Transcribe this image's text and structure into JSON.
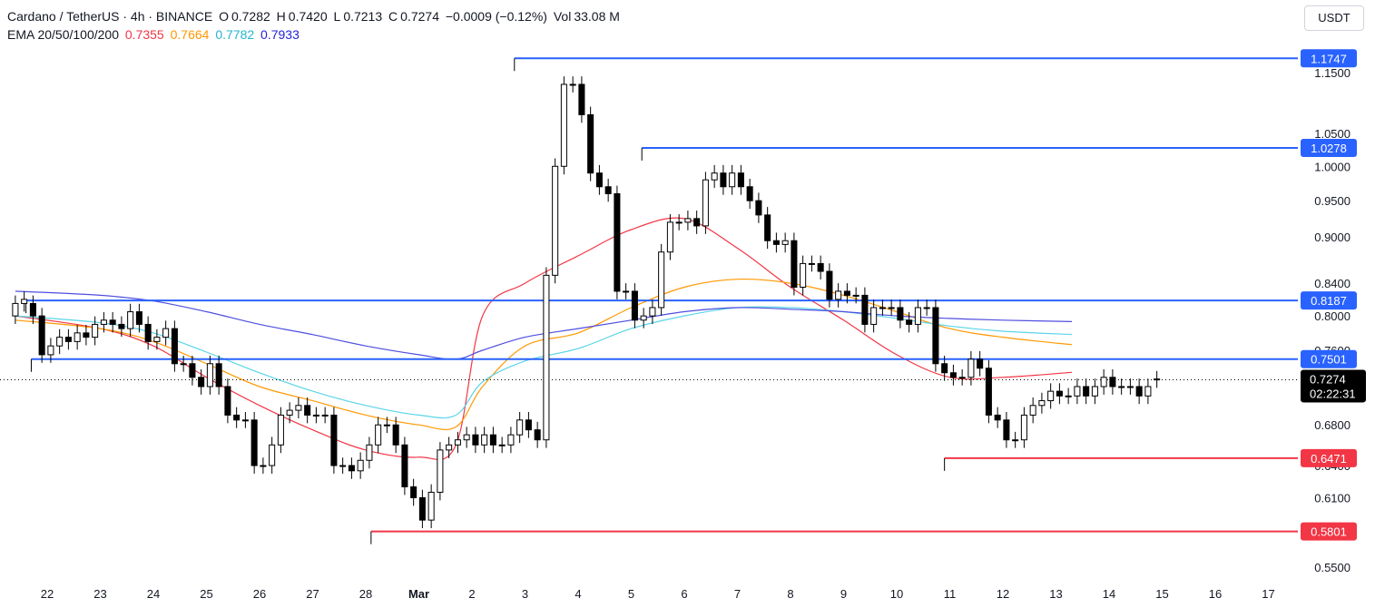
{
  "header": {
    "symbol": "Cardano / TetherUS · 4h · BINANCE",
    "open_label": "O",
    "open": "0.7282",
    "high_label": "H",
    "high": "0.7420",
    "low_label": "L",
    "low": "0.7213",
    "close_label": "C",
    "close": "0.7274",
    "change": "−0.0009 (−0.12%)",
    "vol_label": "Vol",
    "vol": "33.08 M",
    "ema_label": "EMA 20/50/100/200",
    "ema20": "0.7355",
    "ema50": "0.7664",
    "ema100": "0.7782",
    "ema200": "0.7933"
  },
  "unit": "USDT",
  "colors": {
    "ema20": "#f23645",
    "ema50": "#ff9800",
    "ema100": "#5bd5e8",
    "ema200": "#4f4ee0",
    "resistance": "#2962ff",
    "support": "#f23645",
    "candle": "#000000",
    "current": "#000000"
  },
  "chart_data": {
    "type": "candlestick",
    "title": "Cardano / TetherUS · 4h · BINANCE",
    "y_scale": "log",
    "ylim": [
      0.53,
      1.25
    ],
    "y_ticks": [
      "1.1500",
      "1.0500",
      "1.0000",
      "0.9500",
      "0.9000",
      "0.8400",
      "0.8000",
      "0.7600",
      "0.6800",
      "0.6400",
      "0.6100",
      "0.5500"
    ],
    "x_labels": [
      "22",
      "23",
      "24",
      "25",
      "26",
      "27",
      "28",
      "Mar",
      "2",
      "3",
      "4",
      "5",
      "6",
      "7",
      "8",
      "9",
      "10",
      "11",
      "12",
      "13",
      "14",
      "15",
      "16",
      "17"
    ],
    "x_label_days": [
      0,
      1,
      2,
      3,
      4,
      5,
      6,
      7,
      8,
      9,
      10,
      11,
      12,
      13,
      14,
      15,
      16,
      17,
      18,
      19,
      20,
      21,
      22,
      23
    ],
    "candles_per_day": 6,
    "start_day": -0.6,
    "close": [
      0.815,
      0.82,
      0.8,
      0.755,
      0.765,
      0.775,
      0.77,
      0.78,
      0.775,
      0.79,
      0.795,
      0.79,
      0.785,
      0.805,
      0.79,
      0.77,
      0.775,
      0.785,
      0.745,
      0.745,
      0.73,
      0.72,
      0.745,
      0.72,
      0.69,
      0.685,
      0.685,
      0.64,
      0.64,
      0.66,
      0.69,
      0.695,
      0.7,
      0.69,
      0.69,
      0.69,
      0.64,
      0.64,
      0.635,
      0.645,
      0.66,
      0.68,
      0.68,
      0.66,
      0.62,
      0.61,
      0.59,
      0.615,
      0.655,
      0.66,
      0.665,
      0.67,
      0.66,
      0.67,
      0.66,
      0.66,
      0.67,
      0.685,
      0.675,
      0.665,
      0.85,
      1.0,
      1.13,
      1.13,
      1.08,
      0.99,
      0.97,
      0.96,
      0.83,
      0.83,
      0.795,
      0.8,
      0.81,
      0.88,
      0.92,
      0.92,
      0.925,
      0.915,
      0.98,
      0.99,
      0.97,
      0.99,
      0.97,
      0.95,
      0.93,
      0.895,
      0.89,
      0.895,
      0.835,
      0.865,
      0.865,
      0.855,
      0.82,
      0.83,
      0.825,
      0.825,
      0.79,
      0.81,
      0.81,
      0.81,
      0.795,
      0.79,
      0.81,
      0.81,
      0.745,
      0.735,
      0.73,
      0.73,
      0.75,
      0.74,
      0.69,
      0.685,
      0.665,
      0.665,
      0.69,
      0.7,
      0.705,
      0.715,
      0.71,
      0.71,
      0.72,
      0.71,
      0.72,
      0.73,
      0.72,
      0.72,
      0.72,
      0.71,
      0.72,
      0.7274
    ],
    "open": [
      0.8,
      0.815,
      0.815,
      0.8,
      0.755,
      0.765,
      0.775,
      0.77,
      0.78,
      0.775,
      0.79,
      0.795,
      0.79,
      0.785,
      0.805,
      0.79,
      0.77,
      0.775,
      0.785,
      0.745,
      0.745,
      0.73,
      0.72,
      0.745,
      0.72,
      0.69,
      0.685,
      0.685,
      0.64,
      0.64,
      0.66,
      0.69,
      0.695,
      0.7,
      0.69,
      0.69,
      0.69,
      0.64,
      0.64,
      0.635,
      0.645,
      0.66,
      0.68,
      0.68,
      0.66,
      0.62,
      0.61,
      0.59,
      0.615,
      0.655,
      0.66,
      0.665,
      0.67,
      0.66,
      0.67,
      0.66,
      0.66,
      0.67,
      0.685,
      0.675,
      0.665,
      0.85,
      1.0,
      1.13,
      1.13,
      1.08,
      0.99,
      0.97,
      0.96,
      0.83,
      0.83,
      0.795,
      0.8,
      0.81,
      0.88,
      0.92,
      0.92,
      0.925,
      0.915,
      0.98,
      0.99,
      0.97,
      0.99,
      0.97,
      0.95,
      0.93,
      0.895,
      0.89,
      0.895,
      0.835,
      0.865,
      0.865,
      0.855,
      0.82,
      0.83,
      0.825,
      0.825,
      0.79,
      0.81,
      0.81,
      0.81,
      0.795,
      0.79,
      0.81,
      0.81,
      0.745,
      0.735,
      0.73,
      0.73,
      0.75,
      0.74,
      0.69,
      0.685,
      0.665,
      0.665,
      0.69,
      0.7,
      0.705,
      0.715,
      0.71,
      0.71,
      0.72,
      0.71,
      0.72,
      0.73,
      0.72,
      0.72,
      0.72,
      0.71,
      0.7282
    ],
    "ema_series": [
      {
        "name": "EMA 20",
        "days": [
          -0.6,
          1,
          2,
          3,
          4,
          5,
          6,
          7,
          7.7,
          8.2,
          9,
          10,
          11,
          12,
          13,
          14,
          15,
          16,
          17,
          18,
          19.3
        ],
        "values": [
          0.8,
          0.785,
          0.765,
          0.73,
          0.7,
          0.675,
          0.655,
          0.648,
          0.66,
          0.8,
          0.84,
          0.875,
          0.91,
          0.925,
          0.885,
          0.835,
          0.795,
          0.755,
          0.73,
          0.73,
          0.7355
        ]
      },
      {
        "name": "EMA 50",
        "days": [
          -0.6,
          1,
          2,
          3,
          4,
          5,
          6,
          7,
          7.7,
          8.2,
          9,
          10,
          11,
          12,
          13,
          14,
          15,
          16,
          17,
          18,
          19.3
        ],
        "values": [
          0.795,
          0.785,
          0.77,
          0.745,
          0.72,
          0.705,
          0.69,
          0.68,
          0.678,
          0.72,
          0.765,
          0.78,
          0.81,
          0.835,
          0.845,
          0.84,
          0.825,
          0.805,
          0.785,
          0.775,
          0.7664
        ]
      },
      {
        "name": "EMA 100",
        "days": [
          -0.6,
          1,
          2,
          3,
          4,
          5,
          6,
          7,
          7.7,
          8.2,
          9,
          10,
          11,
          12,
          13,
          14,
          15,
          16,
          17,
          18,
          19.3
        ],
        "values": [
          0.8,
          0.792,
          0.78,
          0.758,
          0.735,
          0.715,
          0.7,
          0.69,
          0.69,
          0.725,
          0.748,
          0.762,
          0.785,
          0.8,
          0.81,
          0.81,
          0.805,
          0.797,
          0.788,
          0.782,
          0.7782
        ]
      },
      {
        "name": "EMA 200",
        "days": [
          -0.6,
          1,
          2,
          3,
          4,
          5,
          6,
          7,
          7.7,
          8.2,
          9,
          10,
          11,
          12,
          13,
          14,
          15,
          16,
          17,
          18,
          19.3
        ],
        "values": [
          0.83,
          0.825,
          0.818,
          0.805,
          0.79,
          0.778,
          0.765,
          0.755,
          0.75,
          0.76,
          0.775,
          0.785,
          0.795,
          0.805,
          0.81,
          0.808,
          0.805,
          0.8,
          0.797,
          0.795,
          0.7933
        ]
      }
    ],
    "levels": [
      {
        "name": "resistance",
        "value": 1.1747,
        "label": "1.1747",
        "from_day": 8.8
      },
      {
        "name": "resistance",
        "value": 1.0278,
        "label": "1.0278",
        "from_day": 11.2
      },
      {
        "name": "resistance",
        "value": 0.8187,
        "label": "0.8187",
        "from_day": -0.4
      },
      {
        "name": "resistance",
        "value": 0.7501,
        "label": "0.7501",
        "from_day": -0.3
      },
      {
        "name": "support",
        "value": 0.6471,
        "label": "0.6471",
        "from_day": 16.9
      },
      {
        "name": "support",
        "value": 0.5801,
        "label": "0.5801",
        "from_day": 6.1
      }
    ],
    "current_price": {
      "value": 0.7274,
      "label": "0.7274",
      "countdown": "02:22:31"
    }
  }
}
